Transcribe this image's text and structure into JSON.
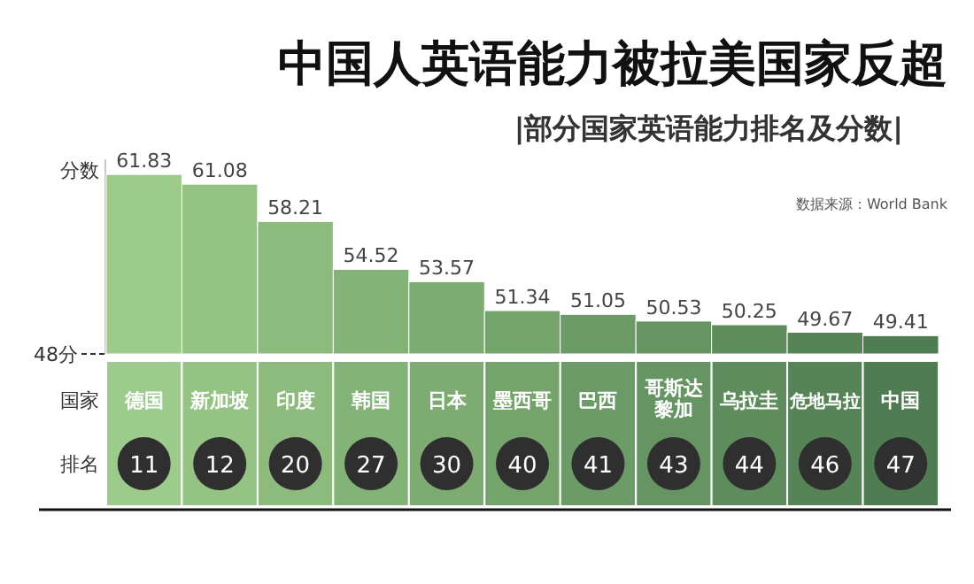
{
  "chart_data": {
    "type": "bar",
    "title": "中国人英语能力被拉美国家反超",
    "subtitle": "|部分国家英语能力排名及分数|",
    "ylabel": "分数",
    "categories": [
      "德国",
      "新加坡",
      "印度",
      "韩国",
      "日本",
      "墨西哥",
      "巴西",
      "哥斯达黎加",
      "乌拉圭",
      "危地马拉",
      "中国"
    ],
    "values": [
      61.83,
      61.08,
      58.21,
      54.52,
      53.57,
      51.34,
      51.05,
      50.53,
      50.25,
      49.67,
      49.41
    ],
    "colors": [
      "#9ccb8b",
      "#94c383",
      "#8cbb7d",
      "#84b377",
      "#7dab72",
      "#75a36c",
      "#6d9b67",
      "#669462",
      "#5f8c5d",
      "#578456",
      "#4f7c50"
    ],
    "ylim": [
      48,
      63
    ],
    "data_labels": true,
    "annotations": [
      "国家",
      "排名",
      "数据来源：World Bank",
      "48分",
      "11",
      "12",
      "20",
      "27",
      "30",
      "40",
      "41",
      "43",
      "44",
      "46",
      "47"
    ]
  }
}
